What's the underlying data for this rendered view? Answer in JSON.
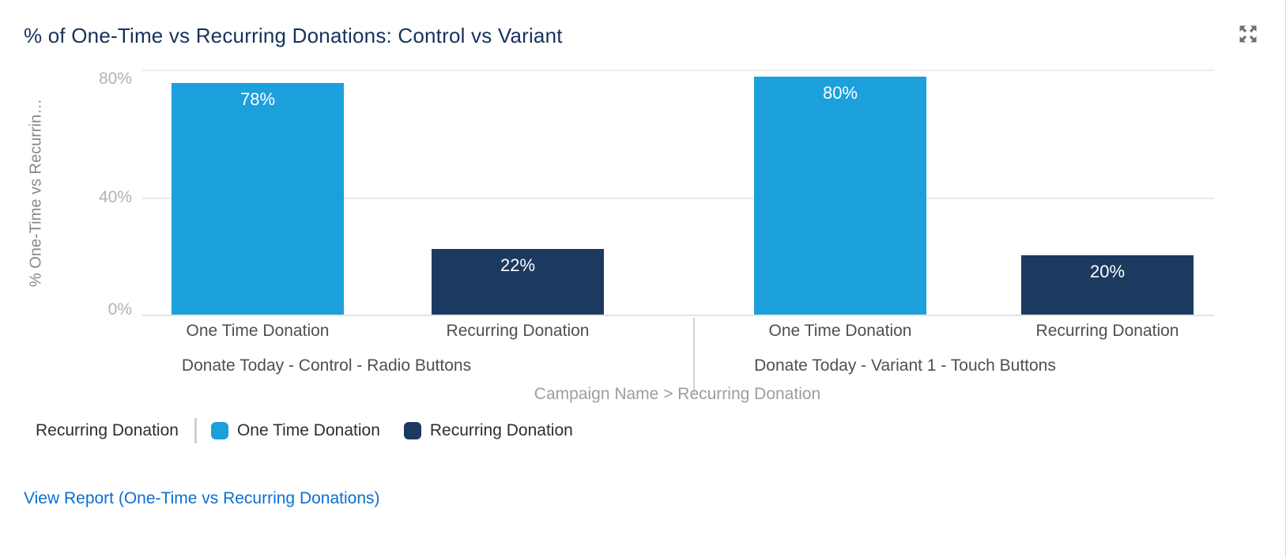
{
  "widget": {
    "title": "% of One-Time vs Recurring Donations: Control vs Variant",
    "view_report_label": "View Report (One-Time vs Recurring Donations)"
  },
  "chart_data": {
    "type": "bar",
    "title": "% of One-Time vs Recurring Donations: Control vs Variant",
    "ylabel": "% One-Time vs Recurrin…",
    "xlabel": "Campaign Name > Recurring Donation",
    "ylim": [
      0,
      83
    ],
    "yticks": [
      "80%",
      "40%",
      "0%"
    ],
    "grid": "horizontal-at-40",
    "legend_position": "bottom-left",
    "categories": [
      "Donate Today - Control - Radio Buttons",
      "Donate Today - Variant 1 - Touch Buttons"
    ],
    "series": [
      {
        "name": "One Time Donation",
        "color": "#1ba0dc",
        "values": [
          78,
          80
        ]
      },
      {
        "name": "Recurring Donation",
        "color": "#1c3a60",
        "values": [
          22,
          20
        ]
      }
    ],
    "groups": [
      {
        "label": "Donate Today - Control - Radio Buttons",
        "bars": [
          {
            "category": "One Time Donation",
            "value": 78,
            "label": "78%",
            "color": "#1ba0dc"
          },
          {
            "category": "Recurring Donation",
            "value": 22,
            "label": "22%",
            "color": "#1c3a60"
          }
        ]
      },
      {
        "label": "Donate Today - Variant 1 - Touch Buttons",
        "bars": [
          {
            "category": "One Time Donation",
            "value": 80,
            "label": "80%",
            "color": "#1ba0dc"
          },
          {
            "category": "Recurring Donation",
            "value": 20,
            "label": "20%",
            "color": "#1c3a60"
          }
        ]
      }
    ]
  },
  "legend": {
    "title": "Recurring Donation",
    "items": [
      {
        "label": "One Time Donation",
        "color": "#1ba0dc"
      },
      {
        "label": "Recurring Donation",
        "color": "#1c3a60"
      }
    ]
  },
  "colors": {
    "title_text": "#16325c",
    "bar_one_time": "#1ba0dc",
    "bar_recurring": "#1c3a60",
    "link_blue": "#0b6fd2",
    "tick_gray": "#b3b1af",
    "axis_label_gray": "#9f9d9b"
  }
}
